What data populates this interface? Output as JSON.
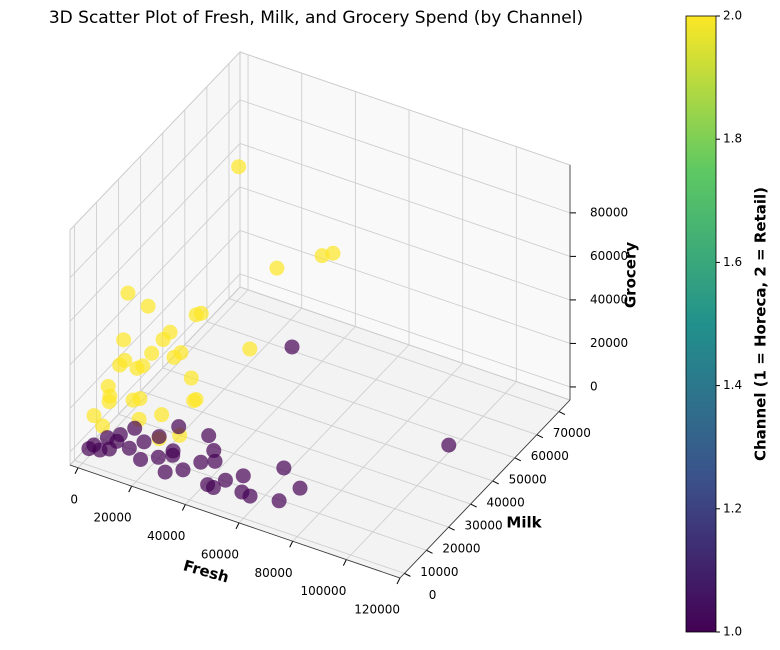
{
  "chart_data": {
    "type": "scatter3d",
    "title": "3D Scatter Plot of Fresh, Milk, and Grocery Spend (by Channel)",
    "x_label": "Fresh",
    "y_label": "Milk",
    "z_label": "Grocery",
    "colorbar_label": "Channel (1 = Horeca, 2 = Retail)",
    "x": [
      22000,
      36100,
      37100,
      38000,
      26000,
      9100,
      7100,
      15500,
      12100,
      8000,
      4000,
      6000,
      3000,
      11000,
      16000,
      2000,
      5000,
      9000,
      14000,
      20000,
      25000,
      18000,
      1000,
      7000,
      12000,
      3000,
      10000,
      28000,
      22000,
      5000,
      17000,
      30000,
      13000,
      35400,
      112151,
      76400,
      57900,
      67200,
      5000,
      15000,
      20000,
      25000,
      30000,
      35000,
      40000,
      45000,
      50000,
      55000,
      60000,
      3000,
      8000,
      10000,
      12000,
      18000,
      22000,
      28000,
      32000,
      42000,
      48000,
      6000,
      2000,
      26000,
      38000,
      17000,
      44000,
      70000
    ],
    "y": [
      44000,
      44200,
      63450,
      67300,
      44200,
      9550,
      21100,
      32650,
      25000,
      15000,
      12000,
      20000,
      8000,
      18000,
      22000,
      10000,
      6000,
      12000,
      9000,
      25000,
      20000,
      14000,
      4000,
      28000,
      30000,
      15000,
      7000,
      10000,
      8000,
      3000,
      5000,
      15000,
      38000,
      51900,
      29627,
      5700,
      1850,
      9550,
      1850,
      3000,
      2000,
      4000,
      1000,
      3000,
      5000,
      2000,
      4000,
      6000,
      3000,
      1500,
      2500,
      5000,
      1000,
      6000,
      8000,
      7000,
      2000,
      9000,
      1000,
      4000,
      500,
      12000,
      11000,
      3000,
      6000,
      4000
    ],
    "z": [
      92780,
      51900,
      37600,
      35000,
      10500,
      65800,
      46700,
      34000,
      32700,
      25000,
      28000,
      20000,
      22000,
      30000,
      26000,
      15000,
      18000,
      14000,
      20000,
      15000,
      12000,
      9000,
      12000,
      24000,
      18000,
      36000,
      38000,
      8000,
      6000,
      10000,
      16000,
      20000,
      28000,
      7200,
      18148,
      8700,
      3200,
      10000,
      160,
      4000,
      2000,
      3000,
      1500,
      2500,
      6000,
      1000,
      3000,
      5000,
      1000,
      2000,
      1200,
      6000,
      8000,
      5000,
      7000,
      4000,
      9000,
      3000,
      2000,
      4000,
      1000,
      9000,
      11000,
      14000,
      12000,
      2000
    ],
    "c": [
      2,
      2,
      2,
      2,
      2,
      2,
      2,
      2,
      2,
      2,
      2,
      2,
      2,
      2,
      2,
      2,
      2,
      2,
      2,
      2,
      2,
      2,
      2,
      2,
      2,
      2,
      2,
      2,
      2,
      2,
      2,
      2,
      2,
      1,
      1,
      1,
      1,
      1,
      1,
      1,
      1,
      1,
      1,
      1,
      1,
      1,
      1,
      1,
      1,
      1,
      1,
      1,
      1,
      1,
      1,
      1,
      1,
      1,
      1,
      1,
      1,
      1,
      1,
      1,
      1,
      1
    ],
    "xlim": [
      -3000,
      120000
    ],
    "ylim": [
      -2000,
      75000
    ],
    "zlim": [
      -6000,
      102000
    ],
    "xticks": [
      0,
      20000,
      40000,
      60000,
      80000,
      100000,
      120000
    ],
    "yticks": [
      0,
      10000,
      20000,
      30000,
      40000,
      50000,
      60000,
      70000
    ],
    "zticks": [
      0,
      20000,
      40000,
      60000,
      80000
    ],
    "clim": [
      1,
      2
    ],
    "cticks": [
      {
        "value": 1,
        "label": "1.0"
      },
      {
        "value": 1.2,
        "label": "1.2"
      },
      {
        "value": 1.4,
        "label": "1.4"
      },
      {
        "value": 1.6,
        "label": "1.6"
      },
      {
        "value": 1.8,
        "label": "1.8"
      },
      {
        "value": 2,
        "label": "2.0"
      }
    ],
    "colormap": [
      "#440154",
      "#3b528b",
      "#21918c",
      "#5ec962",
      "#fde725"
    ],
    "alpha": 0.7,
    "grid": true
  }
}
